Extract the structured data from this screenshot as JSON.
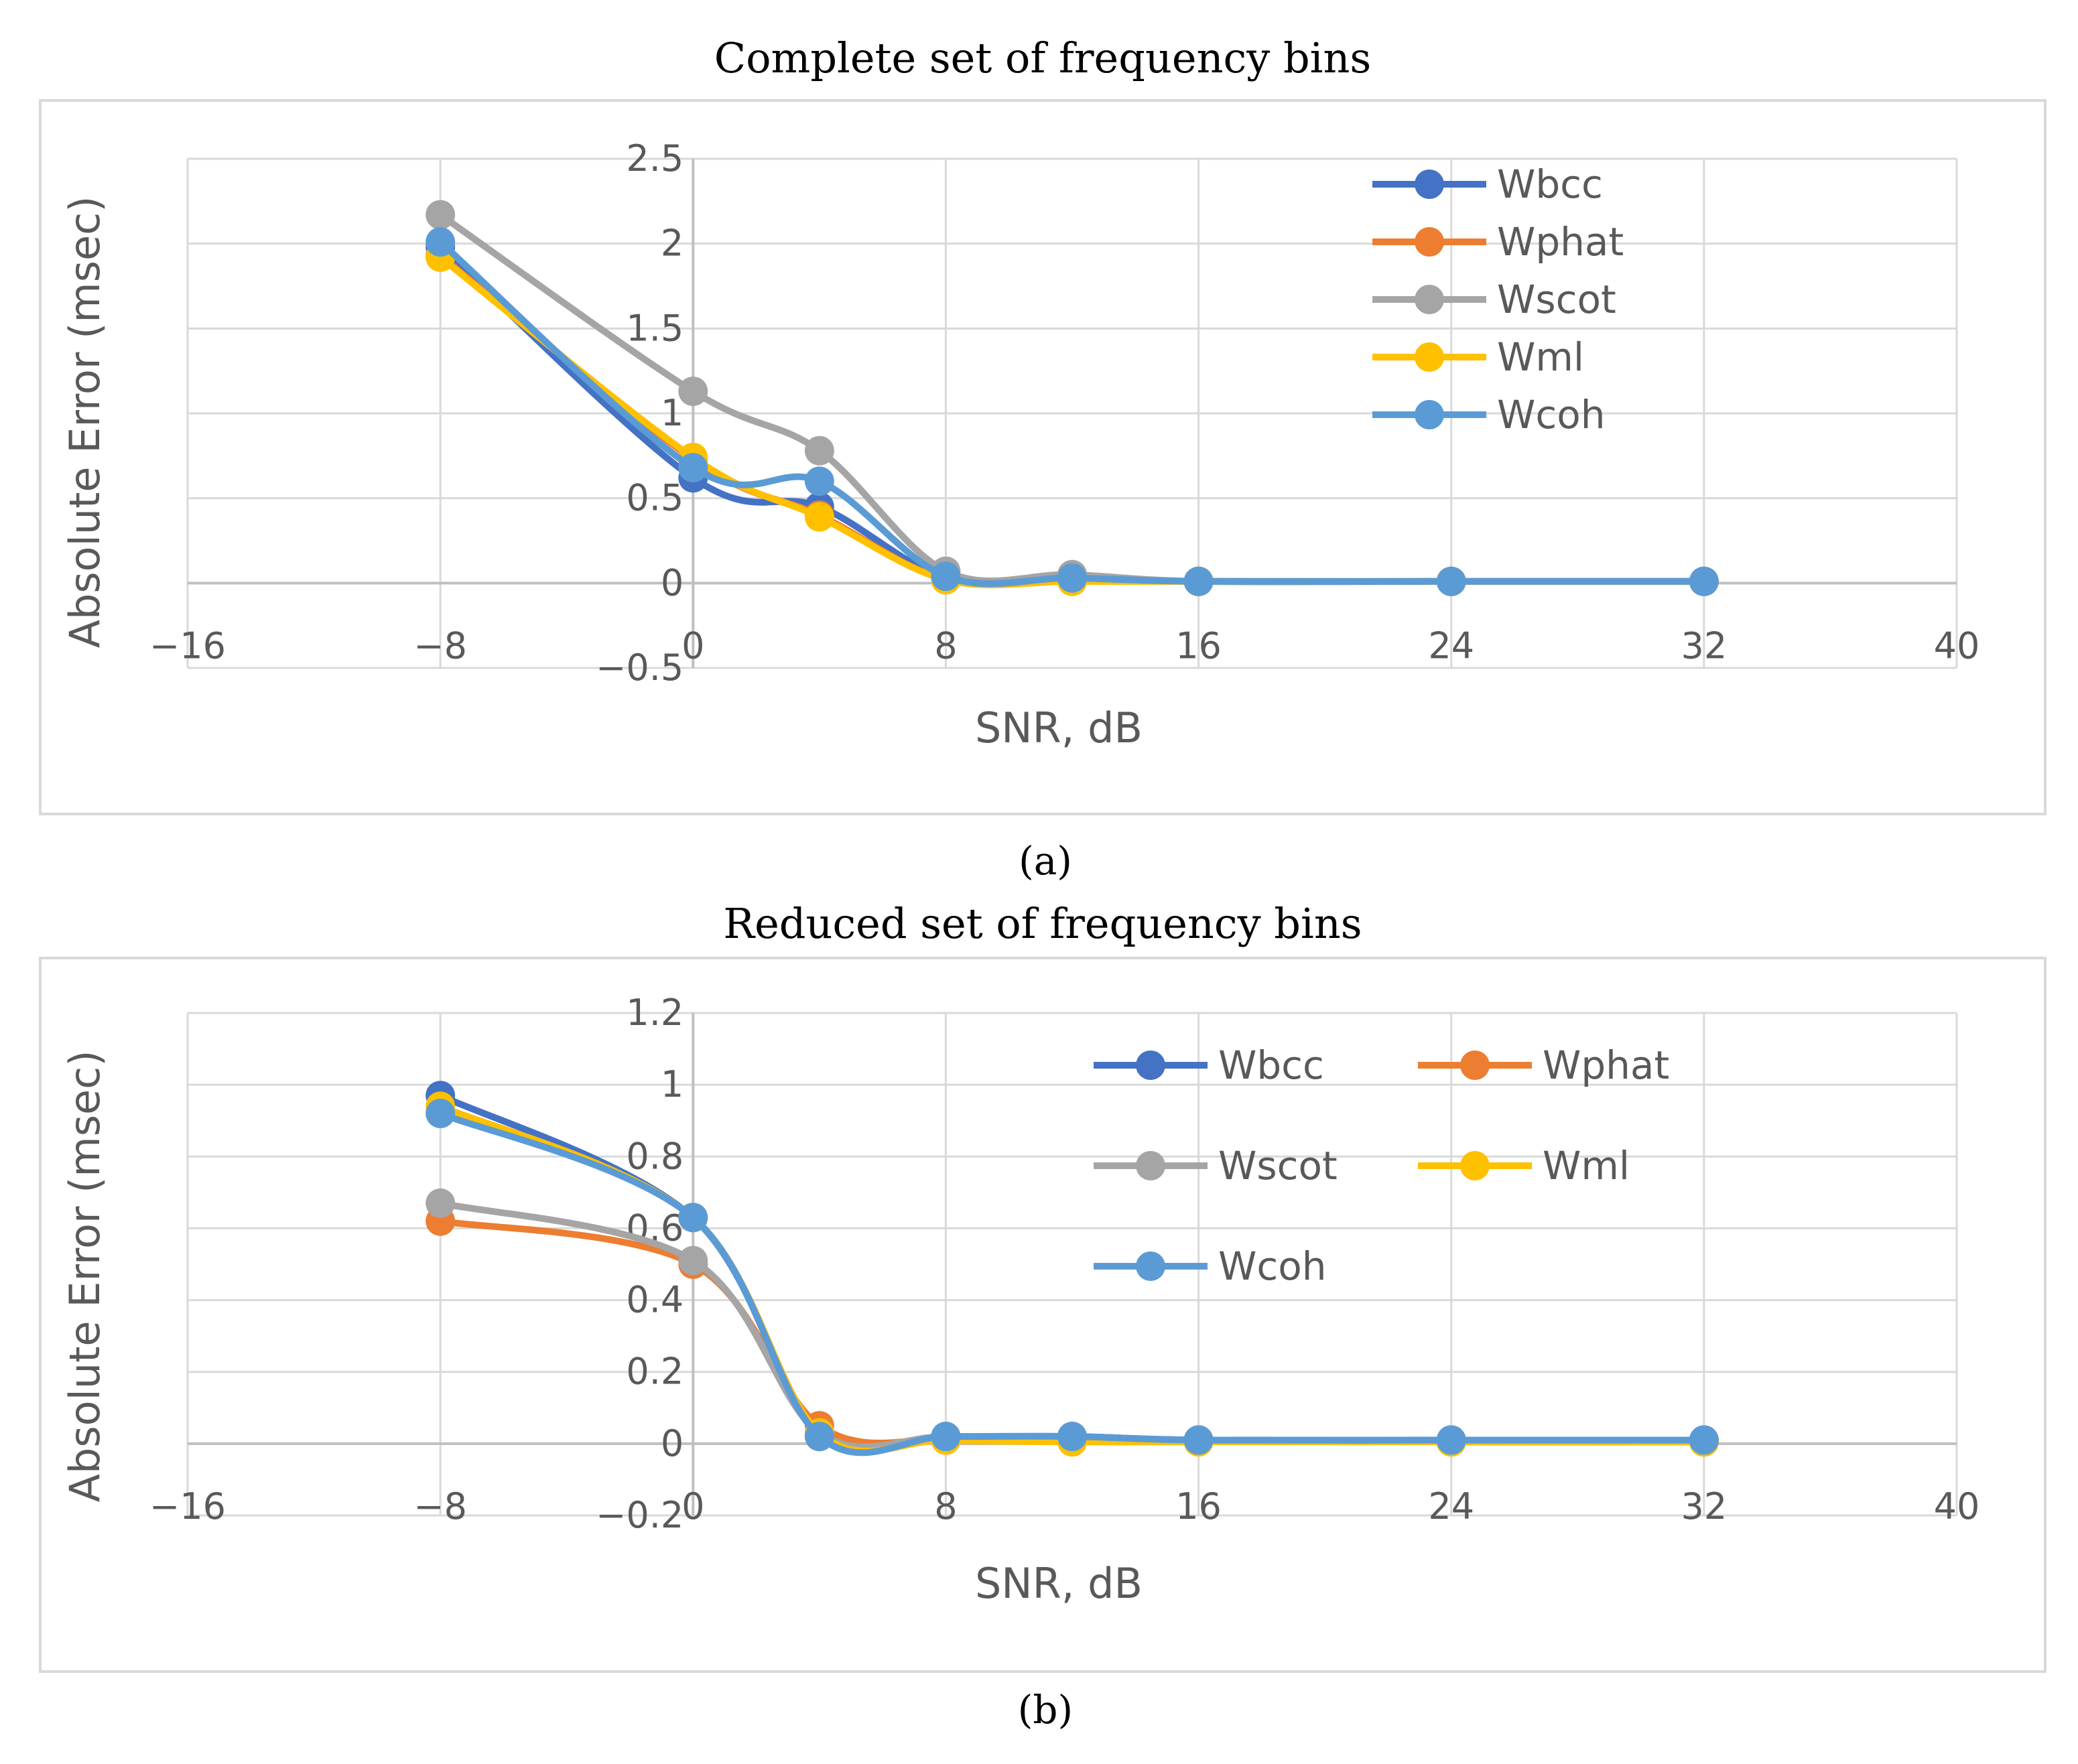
{
  "chart_data": [
    {
      "type": "line",
      "title": "Complete set of frequency bins",
      "caption": "(a)",
      "xlabel": "SNR, dB",
      "ylabel": "Absolute Error (msec)",
      "xlim": [
        -16,
        40
      ],
      "ylim": [
        -0.5,
        2.5
      ],
      "x_ticks": [
        -16,
        -8,
        0,
        8,
        16,
        24,
        32,
        40
      ],
      "y_ticks": [
        -0.5,
        0,
        0.5,
        1,
        1.5,
        2,
        2.5
      ],
      "grid": true,
      "legend_position": "top-right",
      "x": [
        -8,
        0,
        4,
        8,
        12,
        16,
        24,
        32
      ],
      "series": [
        {
          "name": "Wbcc",
          "color": "#4472C4",
          "values": [
            1.98,
            0.62,
            0.45,
            0.03,
            0.03,
            0.01,
            0.01,
            0.01
          ]
        },
        {
          "name": "Wphat",
          "color": "#ED7D31",
          "values": [
            1.93,
            0.73,
            0.4,
            0.02,
            0.02,
            0.01,
            0.01,
            0.01
          ]
        },
        {
          "name": "Wscot",
          "color": "#A5A5A5",
          "values": [
            2.17,
            1.13,
            0.78,
            0.07,
            0.05,
            0.01,
            0.01,
            0.01
          ]
        },
        {
          "name": "Wml",
          "color": "#FFC000",
          "values": [
            1.92,
            0.74,
            0.39,
            0.02,
            0.01,
            0.01,
            0.01,
            0.01
          ]
        },
        {
          "name": "Wcoh",
          "color": "#5B9BD5",
          "values": [
            2.01,
            0.68,
            0.6,
            0.04,
            0.03,
            0.01,
            0.01,
            0.01
          ]
        }
      ]
    },
    {
      "type": "line",
      "title": "Reduced set of frequency bins",
      "caption": "(b)",
      "xlabel": "SNR, dB",
      "ylabel": "Absolute Error (msec)",
      "xlim": [
        -16,
        40
      ],
      "ylim": [
        -0.2,
        1.2
      ],
      "x_ticks": [
        -16,
        -8,
        0,
        8,
        16,
        24,
        32,
        40
      ],
      "y_ticks": [
        -0.2,
        0,
        0.2,
        0.4,
        0.6,
        0.8,
        1,
        1.2
      ],
      "grid": true,
      "legend_position": "top-right",
      "x": [
        -8,
        0,
        4,
        8,
        12,
        16,
        24,
        32
      ],
      "series": [
        {
          "name": "Wbcc",
          "color": "#4472C4",
          "values": [
            0.97,
            0.63,
            0.03,
            0.02,
            0.02,
            0.01,
            0.01,
            0.01
          ]
        },
        {
          "name": "Wphat",
          "color": "#ED7D31",
          "values": [
            0.62,
            0.5,
            0.05,
            0.01,
            0.01,
            0.01,
            0.005,
            0.005
          ]
        },
        {
          "name": "Wscot",
          "color": "#A5A5A5",
          "values": [
            0.67,
            0.51,
            0.03,
            0.02,
            0.02,
            0.01,
            0.005,
            0.005
          ]
        },
        {
          "name": "Wml",
          "color": "#FFC000",
          "values": [
            0.94,
            0.63,
            0.03,
            0.01,
            0.005,
            0.005,
            0.005,
            0.005
          ]
        },
        {
          "name": "Wcoh",
          "color": "#5B9BD5",
          "values": [
            0.92,
            0.63,
            0.02,
            0.02,
            0.02,
            0.01,
            0.01,
            0.01
          ]
        }
      ]
    }
  ]
}
